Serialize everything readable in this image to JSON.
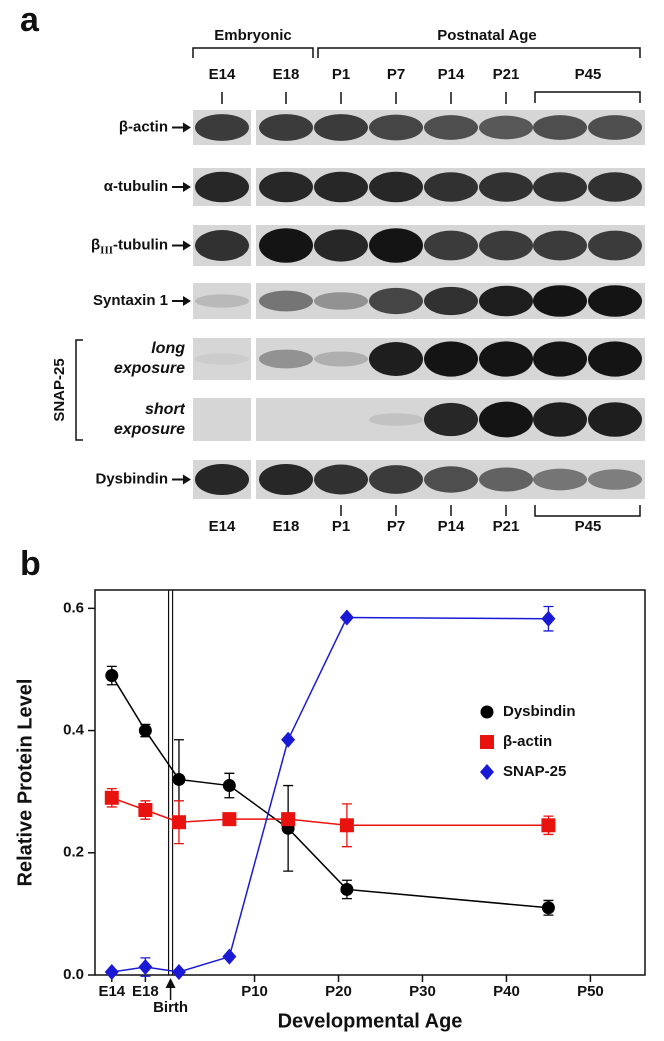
{
  "panel_a": {
    "label": "a",
    "groups": [
      "Embryonic",
      "Postnatal Age"
    ],
    "lanes": [
      "E14",
      "E18",
      "P1",
      "P7",
      "P14",
      "P21",
      "P45"
    ],
    "rows": [
      {
        "label": "β-actin"
      },
      {
        "label": "α-tubulin"
      },
      {
        "label": "β",
        "subscript": "III",
        "suffix": "-tubulin"
      },
      {
        "label": "Syntaxin 1"
      },
      {
        "label": "long exposure"
      },
      {
        "label": "short exposure"
      },
      {
        "label": "Dysbindin"
      }
    ],
    "group_label": "SNAP-25"
  },
  "chart_data": {
    "type": "line",
    "panel_label": "b",
    "xlabel": "Developmental Age",
    "ylabel": "Relative Protein Level",
    "x": [
      -7,
      -3,
      1,
      7,
      14,
      21,
      45
    ],
    "xlim": [
      -9,
      56.5
    ],
    "xticks": [
      {
        "value": -7,
        "label": "E14"
      },
      {
        "value": -3,
        "label": "E18"
      },
      {
        "value": 10,
        "label": "P10"
      },
      {
        "value": 20,
        "label": "P20"
      },
      {
        "value": 30,
        "label": "P30"
      },
      {
        "value": 40,
        "label": "P40"
      },
      {
        "value": 50,
        "label": "P50"
      }
    ],
    "ylim": [
      0,
      0.63
    ],
    "yticks": [
      {
        "value": 0,
        "label": "0.0"
      },
      0.2,
      0.4,
      0.6
    ],
    "annotation": {
      "text": "Birth",
      "x": 0
    },
    "legend": "upper right",
    "series": [
      {
        "name": "Dysbindin",
        "color": "#000000",
        "marker": "circle",
        "values": [
          0.49,
          0.4,
          0.32,
          0.31,
          0.24,
          0.14,
          0.11
        ],
        "errors": [
          0.015,
          0.01,
          0.065,
          0.02,
          0.07,
          0.015,
          0.012
        ]
      },
      {
        "name": "β-actin",
        "color": "#e8130f",
        "marker": "square",
        "values": [
          0.29,
          0.27,
          0.25,
          0.255,
          0.255,
          0.245,
          0.245
        ],
        "errors": [
          0.015,
          0.015,
          0.035,
          0.01,
          0.01,
          0.035,
          0.015
        ]
      },
      {
        "name": "SNAP-25",
        "color": "#1a1ad6",
        "marker": "diamond",
        "values": [
          0.005,
          0.013,
          0.005,
          0.03,
          0.385,
          0.585,
          0.583
        ],
        "errors": [
          0.003,
          0.015,
          0,
          0,
          0,
          0,
          0.02
        ]
      }
    ]
  }
}
